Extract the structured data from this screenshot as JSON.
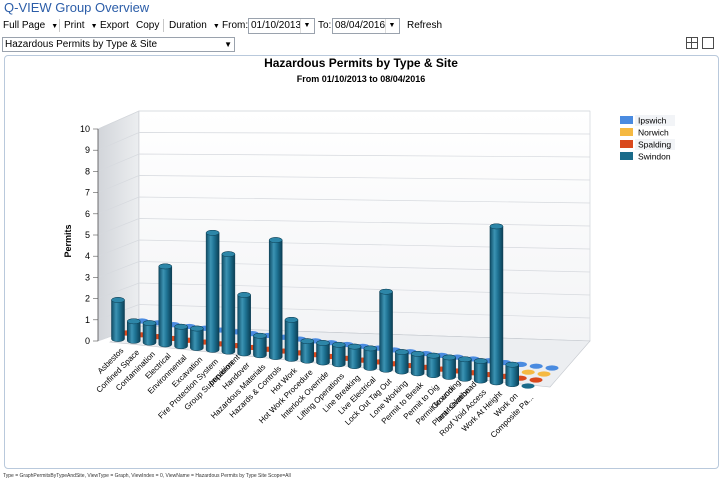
{
  "app": {
    "title": "Q-VIEW Group Overview"
  },
  "toolbar": {
    "full_page": "Full Page",
    "print": "Print",
    "export": "Export",
    "copy": "Copy",
    "duration": "Duration",
    "from_label": "From:",
    "from_value": "01/10/2013",
    "to_label": "To:",
    "to_value": "08/04/2016",
    "refresh": "Refresh"
  },
  "report_select": {
    "value": "Hazardous Permits by Type & Site"
  },
  "view_icons": [
    "grid-view-icon",
    "single-view-icon"
  ],
  "footer": {
    "note": "Type = GraphPermitsByTypeAndSite, ViewType = Graph, ViewIndex = 0, ViewName = Hazardous Permits by Type  Site Scope=All"
  },
  "colors": {
    "Ipswich": "#4a8be0",
    "Norwich": "#f5b942",
    "Spalding": "#d9481c",
    "Swindon": "#1a6b8a"
  },
  "chart_data": {
    "type": "bar",
    "title": "Hazardous Permits by Type & Site",
    "subtitle": "From 01/10/2013 to 08/04/2016",
    "ylabel": "Permits",
    "xlabel": "",
    "ylim": [
      0,
      10
    ],
    "yticks": [
      0,
      1,
      2,
      3,
      4,
      5,
      6,
      7,
      8,
      9,
      10
    ],
    "grid": true,
    "three_d": true,
    "legend_position": "top-right",
    "categories": [
      "Asbestos",
      "Confined Space",
      "Contamination",
      "Electrical",
      "Environmental",
      "Excavation",
      "Fire Protection System",
      "Group Supervision",
      "Handover",
      "Hazardous Materials",
      "Hazards & Controls",
      "Hot Work",
      "Hot Work Procedure",
      "Interlock Override",
      "Lifting Operations",
      "Line Breaking",
      "Live Electrical",
      "Lock Out Tag Out",
      "Lone Working",
      "Permit to Break",
      "Permit to Dig",
      "Permit to work",
      "Plant Isolation",
      "Roof Void Access",
      "Work At Height",
      "Work on",
      "Composite Pa..."
    ],
    "tilted_labels": [
      "Impairment",
      "Grounding",
      "near Overhead"
    ],
    "series": [
      {
        "name": "Ipswich",
        "values": [
          0,
          0,
          0,
          0,
          0,
          0,
          0,
          0,
          0,
          0,
          0,
          0,
          0,
          0,
          0,
          0,
          0,
          0,
          0,
          0,
          0,
          0,
          0,
          0,
          0,
          0,
          0
        ]
      },
      {
        "name": "Norwich",
        "values": [
          0,
          0,
          0,
          0,
          0,
          0,
          0,
          0,
          0,
          0,
          0,
          0,
          0,
          0,
          0,
          0,
          0,
          0,
          0,
          0,
          0,
          0,
          0,
          0,
          0,
          0,
          0
        ]
      },
      {
        "name": "Spalding",
        "values": [
          0,
          0,
          0,
          0,
          0,
          0,
          0,
          0,
          0,
          0,
          0,
          0,
          0,
          0,
          0,
          0,
          0,
          0,
          0,
          0,
          0,
          0,
          0,
          0,
          0,
          0,
          0
        ]
      },
      {
        "name": "Swindon",
        "values": [
          2,
          1,
          1,
          4,
          1,
          1,
          6,
          5,
          3,
          1,
          6,
          2,
          1,
          1,
          1,
          1,
          1,
          4,
          1,
          1,
          1,
          1,
          1,
          1,
          8,
          1,
          0
        ]
      }
    ]
  }
}
